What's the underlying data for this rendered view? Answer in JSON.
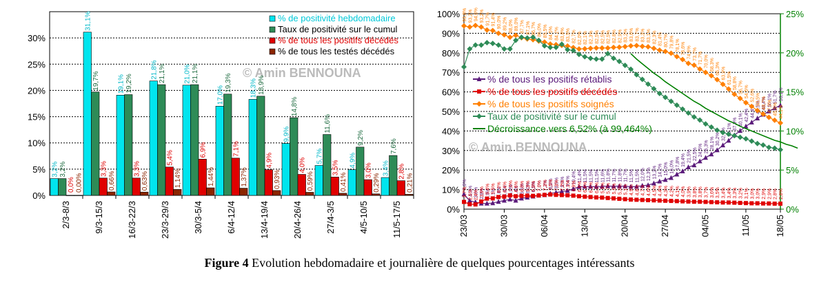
{
  "caption": {
    "prefix": "Figure 4",
    "text": " Evolution hebdomadaire et journalière de quelques pourcentages intéressants"
  },
  "chart_data": [
    {
      "type": "bar",
      "watermark": "© Amin BENNOUNA",
      "categories": [
        "2/3-8/3",
        "9/3-15/3",
        "16/3-22/3",
        "23/3-29/3",
        "30/3-5/4",
        "6/4-12/4",
        "13/4-19/4",
        "20/4-26/4",
        "27/4-3/5",
        "4/5-10/5",
        "11/5-17/5"
      ],
      "ylim": [
        0,
        35
      ],
      "yticks": [
        "0%",
        "5%",
        "10%",
        "15%",
        "20%",
        "25%",
        "30%"
      ],
      "series": [
        {
          "name": "% de positivité hebdomadaire",
          "color": "#00e5ee",
          "values": [
            3.2,
            31.1,
            19.1,
            21.8,
            21.0,
            17.0,
            18.3,
            9.9,
            5.7,
            4.9,
            3.4
          ],
          "labels": [
            "3,2%",
            "31,1%",
            "19,1%",
            "21,8%",
            "21,0%",
            "17,0%",
            "18,3%",
            "9,9%",
            "5,7%",
            "4,9%",
            "3,4%"
          ]
        },
        {
          "name": "Taux de positivité sur le cumul",
          "color": "#2e8b57",
          "values": [
            3.2,
            19.7,
            19.2,
            21.1,
            21.1,
            19.3,
            18.9,
            14.8,
            11.6,
            9.2,
            7.6
          ],
          "labels": [
            "3,2%",
            "19,7%",
            "19,2%",
            "21,1%",
            "21,1%",
            "19,3%",
            "18,9%",
            "14,8%",
            "11,6%",
            "9,2%",
            "7,6%"
          ]
        },
        {
          "name": "% de tous les positifs décédés",
          "color": "#e00000",
          "values": [
            0.0,
            3.3,
            3.3,
            5.4,
            6.9,
            7.1,
            4.9,
            4.0,
            3.5,
            3.0,
            2.8
          ],
          "labels": [
            "0,0%",
            "3,3%",
            "3,3%",
            "5,4%",
            "6,9%",
            "7,1%",
            "4,9%",
            "4,0%",
            "3,5%",
            "3,0%",
            "2,8%"
          ]
        },
        {
          "name": "% de tous les testés décédés",
          "color": "#8b2500",
          "values": [
            0.0,
            0.66,
            0.63,
            1.14,
            1.44,
            1.37,
            0.93,
            0.59,
            0.41,
            0.29,
            0.21
          ],
          "labels": [
            "0,00%",
            "0,66%",
            "0,63%",
            "1,14%",
            "1,44%",
            "1,37%",
            "0,93%",
            "0,59%",
            "0,41%",
            "0,29%",
            "0,21%"
          ]
        }
      ]
    },
    {
      "type": "line",
      "watermark": "© Amin BENNOUNA",
      "xticks": [
        "23/03",
        "30/03",
        "06/04",
        "13/04",
        "20/04",
        "27/04",
        "04/05",
        "11/05",
        "18/05"
      ],
      "ylim": [
        0,
        100
      ],
      "yticks": [
        "0%",
        "10%",
        "20%",
        "30%",
        "40%",
        "50%",
        "60%",
        "70%",
        "80%",
        "90%",
        "100%"
      ],
      "y2lim": [
        0,
        25
      ],
      "y2ticks": [
        "0%",
        "5%",
        "10%",
        "15%",
        "20%",
        "25%"
      ],
      "series": [
        {
          "name": "% de tous les positifs rétablis",
          "color": "#5a1a7a",
          "marker": "triangle",
          "axis": "left",
          "values": [
            7.6,
            4.3,
            3.6,
            2.9,
            2.9,
            3.1,
            3.8,
            4.4,
            5.0,
            4.4,
            5.5,
            6.0,
            6.5,
            7.0,
            7.2,
            8.0,
            8.5,
            9.0,
            9.4,
            10.4,
            11.4,
            11.5,
            11.5,
            11.5,
            11.6,
            11.8,
            11.7,
            11.8,
            11.7,
            11.5,
            11.5,
            12.0,
            12.3,
            13.2,
            14.2,
            15.0,
            16.0,
            17.8,
            19.4,
            21.5,
            22.5,
            24.5,
            26.3,
            28.1,
            30.2,
            32.7,
            35.1,
            37.9,
            40.1,
            42.4,
            44.4,
            46.5,
            48.4,
            50.1,
            51.7,
            53.1
          ]
        },
        {
          "name": "% de tous les positifs décédés",
          "color": "#e00000",
          "marker": "square",
          "axis": "left",
          "values": [
            3.7,
            2.5,
            2.4,
            3.9,
            5.4,
            5.5,
            6.2,
            6.4,
            7.0,
            6.6,
            6.8,
            6.9,
            6.8,
            7.0,
            7.3,
            7.5,
            7.3,
            7.2,
            7.1,
            6.9,
            6.6,
            6.4,
            6.2,
            6.0,
            5.9,
            5.7,
            5.5,
            5.3,
            5.1,
            4.9,
            4.8,
            4.7,
            4.6,
            4.5,
            4.4,
            4.3,
            4.2,
            4.1,
            4.0,
            3.9,
            3.8,
            3.8,
            3.7,
            3.6,
            3.5,
            3.4,
            3.4,
            3.3,
            3.2,
            3.1,
            3.0,
            3.0,
            2.9,
            2.9,
            2.8,
            2.8
          ]
        },
        {
          "name": "% de tous les positifs soignés",
          "color": "#ff7f00",
          "marker": "diamond",
          "axis": "left",
          "values": [
            93.8,
            93.2,
            94.0,
            93.2,
            91.7,
            91.4,
            90.0,
            89.2,
            88.0,
            89.0,
            87.7,
            87.1,
            86.7,
            86.0,
            85.5,
            84.5,
            84.2,
            83.8,
            83.5,
            82.7,
            82.0,
            82.1,
            82.3,
            82.5,
            82.5,
            82.5,
            82.8,
            82.9,
            83.2,
            83.6,
            83.7,
            83.3,
            83.1,
            82.3,
            81.4,
            80.7,
            79.8,
            78.1,
            76.6,
            74.6,
            73.7,
            71.7,
            70.0,
            68.3,
            66.3,
            63.9,
            61.5,
            58.8,
            56.7,
            54.5,
            52.6,
            50.5,
            48.7,
            47.0,
            45.5,
            44.1
          ]
        },
        {
          "name": "Taux de positivité sur le cumul",
          "color": "#2e8b57",
          "marker": "diamond",
          "axis": "right",
          "values": [
            18.2,
            20.5,
            21.0,
            21.0,
            21.3,
            21.2,
            21.0,
            20.5,
            20.5,
            21.6,
            22.0,
            21.9,
            22.0,
            21.6,
            20.9,
            20.7,
            20.7,
            21.1,
            20.4,
            20.3,
            19.8,
            19.5,
            19.3,
            19.2,
            19.2,
            19.9,
            19.3,
            18.9,
            18.4,
            17.9,
            17.2,
            16.6,
            16.0,
            15.4,
            14.8,
            14.3,
            13.8,
            13.3,
            12.8,
            12.3,
            11.8,
            11.4,
            10.9,
            10.5,
            10.1,
            9.8,
            9.6,
            9.4,
            9.2,
            9.0,
            8.7,
            8.4,
            8.2,
            7.9,
            7.8,
            7.6
          ]
        },
        {
          "name": "Décroissance vers 6,52% (à 99,464%)",
          "color": "#008000",
          "marker": "none",
          "axis": "right",
          "start_index": 29,
          "values": [
            19.9,
            19.2,
            18.6,
            18.0,
            17.4,
            16.9,
            16.3,
            15.8,
            15.3,
            14.8,
            14.3,
            13.8,
            13.4,
            12.9,
            12.5,
            12.1,
            11.7,
            11.3,
            11.0,
            10.6,
            10.3,
            10.0,
            9.7,
            9.4,
            9.1,
            8.8,
            8.6,
            8.3,
            8.1,
            7.8
          ]
        }
      ]
    }
  ]
}
